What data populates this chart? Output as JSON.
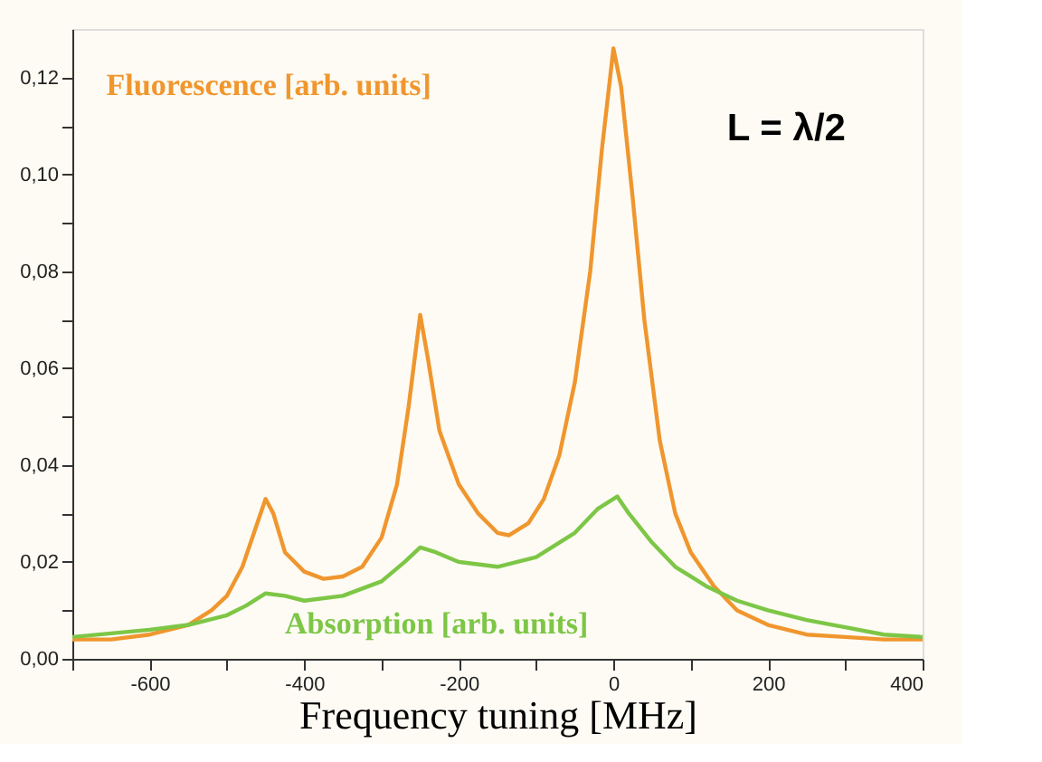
{
  "chart_data": {
    "type": "line",
    "xlabel": "Frequency tuning [MHz]",
    "xlim": [
      -700,
      400
    ],
    "xticks": [
      {
        "value": -700,
        "label": null
      },
      -600,
      {
        "value": -500,
        "label": null
      },
      -400,
      {
        "value": -300,
        "label": null
      },
      -200,
      {
        "value": -100,
        "label": null
      },
      0,
      {
        "value": 100,
        "label": null
      },
      200,
      {
        "value": 300,
        "label": null
      },
      400
    ],
    "ylim": [
      0,
      0.13
    ],
    "yticks": [
      {
        "value": 0,
        "label": "0,00"
      },
      {
        "value": 0.01,
        "label": null
      },
      {
        "value": 0.02,
        "label": "0,02"
      },
      {
        "value": 0.03,
        "label": null
      },
      {
        "value": 0.04,
        "label": "0,04"
      },
      {
        "value": 0.05,
        "label": null
      },
      {
        "value": 0.06,
        "label": "0,06"
      },
      {
        "value": 0.07,
        "label": null
      },
      {
        "value": 0.08,
        "label": "0,08"
      },
      {
        "value": 0.09,
        "label": null
      },
      {
        "value": 0.1,
        "label": "0,10"
      },
      {
        "value": 0.11,
        "label": null
      },
      {
        "value": 0.12,
        "label": "0,12"
      }
    ],
    "grid": false,
    "legend": false,
    "marker": "none",
    "line_style": "solid",
    "annotations": [
      "L = λ/2"
    ],
    "series": [
      {
        "name": "Fluorescence  [arb. units]",
        "color": "#f0962e",
        "x": [
          -700,
          -650,
          -600,
          -550,
          -520,
          -500,
          -480,
          -465,
          -450,
          -440,
          -425,
          -400,
          -375,
          -350,
          -325,
          -300,
          -280,
          -265,
          -250,
          -240,
          -225,
          -200,
          -175,
          -150,
          -135,
          -110,
          -90,
          -70,
          -50,
          -30,
          -15,
          0,
          10,
          25,
          40,
          60,
          80,
          100,
          130,
          160,
          200,
          250,
          300,
          350,
          400
        ],
        "values": [
          0.004,
          0.004,
          0.005,
          0.007,
          0.01,
          0.013,
          0.019,
          0.026,
          0.033,
          0.03,
          0.022,
          0.018,
          0.0165,
          0.017,
          0.019,
          0.025,
          0.036,
          0.052,
          0.071,
          0.062,
          0.047,
          0.036,
          0.03,
          0.026,
          0.0255,
          0.028,
          0.033,
          0.042,
          0.057,
          0.08,
          0.105,
          0.126,
          0.118,
          0.095,
          0.07,
          0.045,
          0.03,
          0.022,
          0.015,
          0.01,
          0.007,
          0.005,
          0.0045,
          0.004,
          0.004
        ]
      },
      {
        "name": "Absorption [arb. units]",
        "color": "#7dc646",
        "x": [
          -700,
          -600,
          -550,
          -500,
          -475,
          -450,
          -425,
          -400,
          -350,
          -300,
          -270,
          -250,
          -230,
          -200,
          -150,
          -100,
          -50,
          -20,
          5,
          20,
          50,
          80,
          120,
          160,
          200,
          250,
          300,
          350,
          400
        ],
        "values": [
          0.0045,
          0.006,
          0.007,
          0.009,
          0.011,
          0.0135,
          0.013,
          0.012,
          0.013,
          0.016,
          0.02,
          0.023,
          0.022,
          0.02,
          0.019,
          0.021,
          0.026,
          0.031,
          0.0335,
          0.03,
          0.024,
          0.019,
          0.015,
          0.012,
          0.01,
          0.008,
          0.0065,
          0.005,
          0.0045
        ]
      }
    ]
  }
}
